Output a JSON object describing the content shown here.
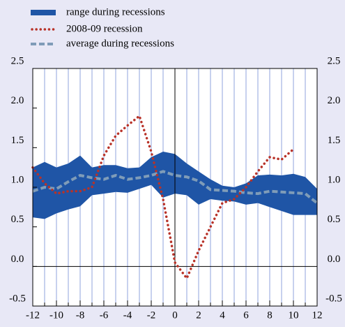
{
  "chart_data": {
    "type": "line",
    "x": [
      -12,
      -11,
      -10,
      -9,
      -8,
      -7,
      -6,
      -5,
      -4,
      -3,
      -2,
      -1,
      0,
      1,
      2,
      3,
      4,
      5,
      6,
      7,
      8,
      9,
      10,
      11,
      12
    ],
    "series": [
      {
        "name": "range during recessions",
        "color": "#1f55a6",
        "low": [
          0.62,
          0.6,
          0.67,
          0.72,
          0.76,
          0.9,
          0.92,
          0.94,
          0.93,
          0.98,
          1.03,
          0.87,
          0.92,
          0.9,
          0.78,
          0.85,
          0.83,
          0.82,
          0.78,
          0.8,
          0.75,
          0.7,
          0.65,
          0.65,
          0.65
        ],
        "high": [
          1.25,
          1.32,
          1.25,
          1.3,
          1.4,
          1.25,
          1.28,
          1.28,
          1.24,
          1.25,
          1.38,
          1.45,
          1.42,
          1.3,
          1.2,
          1.1,
          1.02,
          1.0,
          1.05,
          1.15,
          1.16,
          1.15,
          1.17,
          1.13,
          0.98
        ]
      },
      {
        "name": "2008-09 recession",
        "color": "#b83228",
        "values": [
          1.25,
          1.05,
          0.92,
          0.95,
          0.95,
          1.0,
          1.4,
          1.65,
          1.78,
          1.9,
          1.45,
          0.85,
          0.05,
          -0.15,
          0.2,
          0.5,
          0.8,
          0.85,
          1.0,
          1.2,
          1.38,
          1.35,
          1.48,
          null,
          null
        ]
      },
      {
        "name": "average during recessions",
        "color": "#7f9cb8",
        "values": [
          0.95,
          1.0,
          0.98,
          1.07,
          1.15,
          1.12,
          1.1,
          1.15,
          1.1,
          1.12,
          1.15,
          1.2,
          1.15,
          1.13,
          1.08,
          0.97,
          0.96,
          0.95,
          0.93,
          0.92,
          0.95,
          0.94,
          0.93,
          0.92,
          0.8
        ]
      }
    ],
    "xlim": [
      -12,
      12
    ],
    "xticks": [
      -12,
      -10,
      -8,
      -6,
      -4,
      -2,
      0,
      2,
      4,
      6,
      8,
      10,
      12
    ],
    "ylim": [
      -0.5,
      2.5
    ],
    "yticks": [
      -0.5,
      {
        "value": 0,
        "label": "0.0"
      },
      0.5,
      {
        "value": 1,
        "label": "1.0"
      },
      1.5,
      {
        "value": 2,
        "label": "2.0"
      },
      2.5
    ],
    "grid": true
  }
}
